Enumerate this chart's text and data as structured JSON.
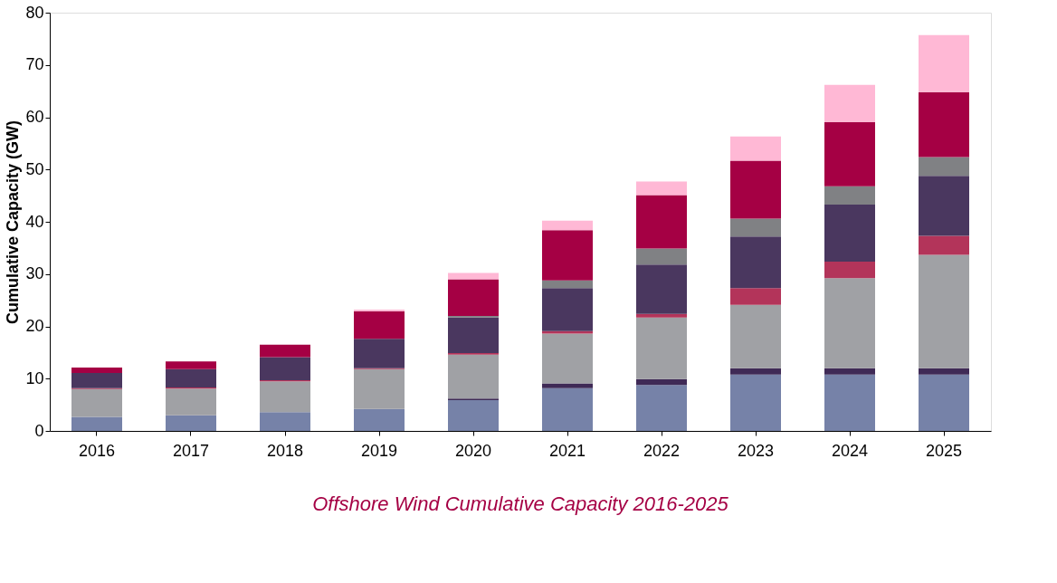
{
  "chart_data": {
    "type": "bar",
    "stacked": true,
    "title": "Offshore Wind Cumulative Capacity 2016-2025",
    "ylabel": "Cumulative Capacity (GW)",
    "categories": [
      "2016",
      "2017",
      "2018",
      "2019",
      "2020",
      "2021",
      "2022",
      "2023",
      "2024",
      "2025"
    ],
    "series": [
      {
        "color": "#7682a8",
        "values": [
          2.7,
          3.0,
          3.6,
          4.2,
          5.9,
          8.2,
          8.8,
          10.8,
          10.8,
          10.8
        ]
      },
      {
        "color": "#3f2a56",
        "values": [
          0,
          0,
          0,
          0,
          0.3,
          0.9,
          1.1,
          1.2,
          1.2,
          1.2
        ]
      },
      {
        "color": "#a0a1a5",
        "values": [
          5.3,
          5.1,
          5.9,
          7.6,
          8.4,
          9.5,
          11.8,
          12.1,
          17.2,
          21.7
        ]
      },
      {
        "color": "#b3345a",
        "values": [
          0.2,
          0.2,
          0.2,
          0.2,
          0.3,
          0.5,
          0.7,
          3.2,
          3.2,
          3.6
        ]
      },
      {
        "color": "#4a375f",
        "values": [
          2.9,
          3.5,
          4.4,
          5.6,
          6.8,
          8.2,
          9.4,
          9.9,
          10.9,
          11.5
        ]
      },
      {
        "color": "#808184",
        "values": [
          0,
          0,
          0,
          0,
          0.3,
          1.5,
          3.1,
          3.4,
          3.5,
          3.6
        ]
      },
      {
        "color": "#a50044",
        "values": [
          1.0,
          1.5,
          2.4,
          5.3,
          7.0,
          9.6,
          10.2,
          11.1,
          12.3,
          12.4
        ]
      },
      {
        "color": "#ffb8d5",
        "values": [
          0,
          0,
          0,
          0.3,
          1.2,
          1.8,
          2.6,
          4.6,
          7.1,
          10.9
        ]
      }
    ],
    "ylim": [
      0,
      80
    ],
    "yticks": [
      0,
      10,
      20,
      30,
      40,
      50,
      60,
      70,
      80
    ],
    "grid": false,
    "legend": false
  }
}
